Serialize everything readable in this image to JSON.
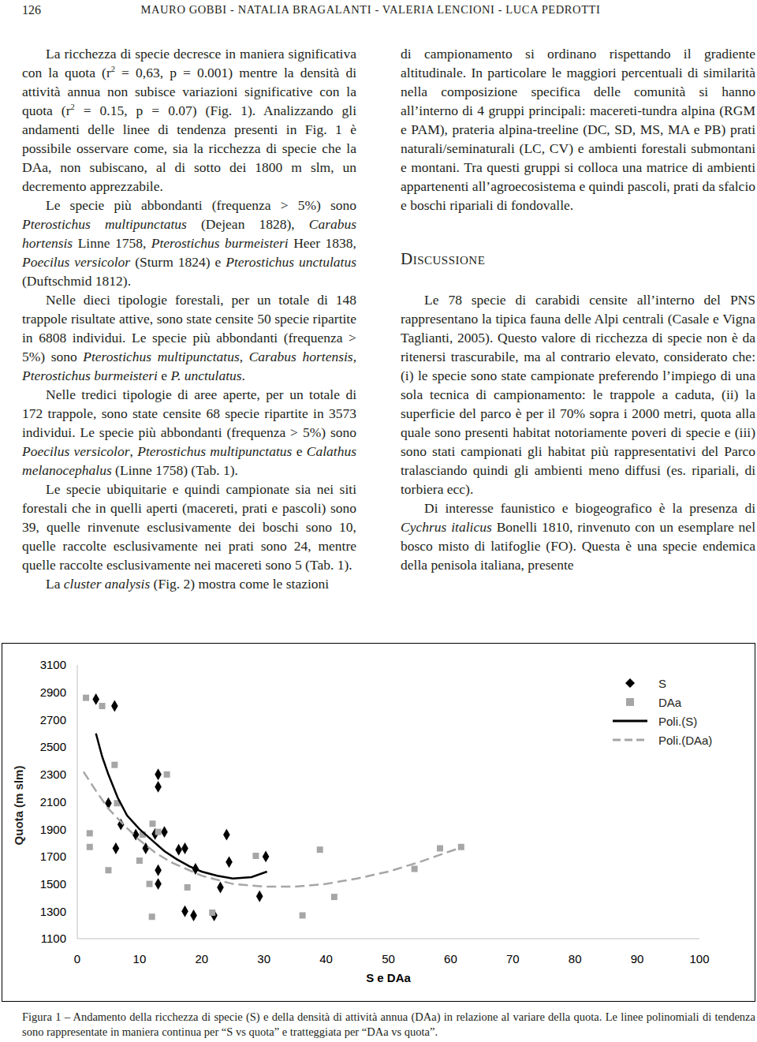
{
  "header": {
    "page_number": "126",
    "authors": "MAURO GOBBI - NATALIA BRAGALANTI - VALERIA LENCIONI - LUCA PEDROTTI"
  },
  "left_column": {
    "paragraphs": [
      [
        "La ricchezza di specie decresce in maniera significativa con la quota (r",
        {
          "sup": "2"
        },
        " = 0,63, p = 0.001) mentre la densità di attività annua non subisce variazioni significative con la quota (r",
        {
          "sup": "2"
        },
        " = 0.15, p = 0.07) (Fig. 1). Analizzando gli andamenti delle linee di tendenza presenti in Fig. 1 è possibile osservare come, sia la ricchezza di specie che la DAa, non subiscano, al di sotto dei 1800 m slm, un decremento apprezzabile."
      ],
      [
        "Le specie più abbondanti (frequenza > 5%) sono ",
        {
          "italic": "Pterostichus multipunctatus"
        },
        " (Dejean 1828), ",
        {
          "italic": "Carabus hortensis"
        },
        " Linne 1758, ",
        {
          "italic": "Pterostichus burmeisteri"
        },
        " Heer 1838, ",
        {
          "italic": "Poecilus versicolor"
        },
        " (Sturm 1824) e ",
        {
          "italic": "Pterostichus unctulatus"
        },
        " (Duftschmid 1812)."
      ],
      [
        "Nelle dieci tipologie forestali, per un totale di 148 trappole risultate attive, sono state censite 50 specie ripartite in 6808 individui. Le specie più abbondanti (frequenza > 5%) sono ",
        {
          "italic": "Pterostichus multipunctatus"
        },
        ", ",
        {
          "italic": "Carabus hortensis"
        },
        ", ",
        {
          "italic": "Pterostichus burmeisteri"
        },
        " e ",
        {
          "italic": "P. unctulatus"
        },
        "."
      ],
      [
        "Nelle tredici tipologie di aree aperte, per un totale di 172 trappole, sono state censite 68 specie ripartite in 3573 individui. Le specie più abbondanti (frequenza > 5%) sono ",
        {
          "italic": "Poecilus versicolor"
        },
        ", ",
        {
          "italic": "Pterostichus multipunctatus"
        },
        " e ",
        {
          "italic": "Calathus melanocephalus"
        },
        " (Linne 1758) (Tab. 1)."
      ],
      [
        "Le specie ubiquitarie e quindi campionate sia nei siti forestali che in quelli aperti (macereti, prati e pascoli) sono 39, quelle rinvenute esclusivamente dei boschi sono 10, quelle raccolte esclusivamente nei prati sono 24, mentre quelle raccolte esclusivamente nei macereti sono 5 (Tab. 1)."
      ],
      [
        "La ",
        {
          "italic": "cluster analysis"
        },
        " (Fig. 2) mostra come le stazioni"
      ]
    ]
  },
  "right_column": {
    "continuation": [
      "di campionamento si ordinano rispettando il gradiente altitudinale. In particolare le maggiori percentuali di similarità nella composizione specifica delle comunità si hanno all’interno di 4 gruppi principali: macereti-tundra alpina (RGM e PAM), prateria alpina-treeline (DC, SD, MS, MA e PB) prati naturali/seminaturali (LC, CV) e ambienti forestali submontani e montani. Tra questi gruppi si colloca una matrice di ambienti appartenenti all’agroecosistema e quindi pascoli, prati da sfalcio e boschi ripariali di fondovalle."
    ],
    "heading": "Discussione",
    "paragraphs": [
      [
        "Le 78 specie di carabidi censite all’interno del PNS rappresentano la tipica fauna delle Alpi centrali (Casale e Vigna Taglianti, 2005). Questo valore di ricchezza di specie non è da ritenersi trascurabile, ma al contrario elevato, considerato che: (i) le specie sono state campionate preferendo l’impiego di una sola tecnica di campionamento: le trappole a caduta, (ii) la superficie del parco è per il 70% sopra i 2000 metri, quota alla quale sono presenti habitat notoriamente poveri di specie e (iii) sono stati campionati gli habitat più rappresentativi del Parco tralasciando quindi gli ambienti meno diffusi (es. ripariali, di torbiera ecc)."
      ],
      [
        "Di interesse faunistico e biogeografico è la presenza di ",
        {
          "italic": "Cychrus italicus"
        },
        " Bonelli 1810, rinvenuto con un esemplare nel bosco misto di latifoglie (FO). Questa è una specie endemica della penisola italiana, presente"
      ]
    ]
  },
  "chart_data": {
    "type": "scatter",
    "x_label": "S e DAa",
    "y_label": "Quota (m slm)",
    "xlim": [
      0,
      100
    ],
    "xticks": [
      0,
      10,
      20,
      30,
      40,
      50,
      60,
      70,
      80,
      90,
      100
    ],
    "ylim": [
      1100,
      3100
    ],
    "yticks": [
      1100,
      1300,
      1500,
      1700,
      1900,
      2100,
      2300,
      2500,
      2700,
      2900,
      3100
    ],
    "grid": false,
    "legend": "upper right",
    "series": [
      {
        "name": "S",
        "color": "#000000",
        "marker": "diamond",
        "line_style": "none",
        "x": [
          3,
          6,
          5,
          13,
          13,
          7,
          6.2,
          9.4,
          11,
          12.5,
          14,
          13,
          13,
          16.3,
          17.3,
          19,
          17.3,
          18.7,
          22,
          23,
          24,
          24.4,
          29.3,
          30.3
        ],
        "y": [
          2850,
          2800,
          2090,
          2300,
          2210,
          1935,
          1760,
          1860,
          1760,
          1865,
          1880,
          1600,
          1500,
          1750,
          1760,
          1610,
          1300,
          1270,
          1270,
          1475,
          1860,
          1660,
          1410,
          1700
        ]
      },
      {
        "name": "DAa",
        "color": "#a6a6a6",
        "marker": "square",
        "line_style": "none",
        "x": [
          1.4,
          4,
          6,
          6.4,
          2,
          2,
          5,
          10.5,
          12.1,
          13,
          10,
          14.4,
          11.6,
          12,
          17.7,
          21.7,
          28.7,
          36.2,
          39,
          41.3,
          54.2,
          58.3,
          61.7
        ],
        "y": [
          2860,
          2800,
          2370,
          2090,
          1870,
          1770,
          1600,
          1860,
          1940,
          1880,
          1670,
          2300,
          1500,
          1260,
          1475,
          1290,
          1705,
          1270,
          1750,
          1405,
          1610,
          1760,
          1770
        ]
      },
      {
        "name": "Poli.(S)",
        "color": "#000000",
        "marker": "none",
        "line_style": "solid",
        "x": [
          3,
          4,
          5,
          6.5,
          8,
          10,
          12,
          14,
          16,
          18,
          20,
          22.5,
          25,
          28,
          30.5
        ],
        "y": [
          2600,
          2430,
          2300,
          2130,
          2000,
          1900,
          1820,
          1740,
          1680,
          1630,
          1590,
          1560,
          1540,
          1550,
          1590
        ]
      },
      {
        "name": "Poli.(DAa)",
        "color": "#a6a6a6",
        "marker": "none",
        "line_style": "dashed",
        "x": [
          1,
          3,
          5,
          7.5,
          10,
          12.5,
          15,
          20,
          25,
          30,
          35,
          40,
          45,
          50,
          55,
          60,
          62
        ],
        "y": [
          2320,
          2180,
          2050,
          1930,
          1820,
          1730,
          1660,
          1560,
          1500,
          1480,
          1480,
          1500,
          1540,
          1590,
          1660,
          1740,
          1770
        ]
      }
    ]
  },
  "caption": "Figura 1 – Andamento della ricchezza di specie (S) e della densità di attività annua (DAa) in relazione al variare della quota. Le linee polinomiali di tendenza sono rappresentate in maniera continua per “S vs quota” e tratteggiata per “DAa vs quota”."
}
